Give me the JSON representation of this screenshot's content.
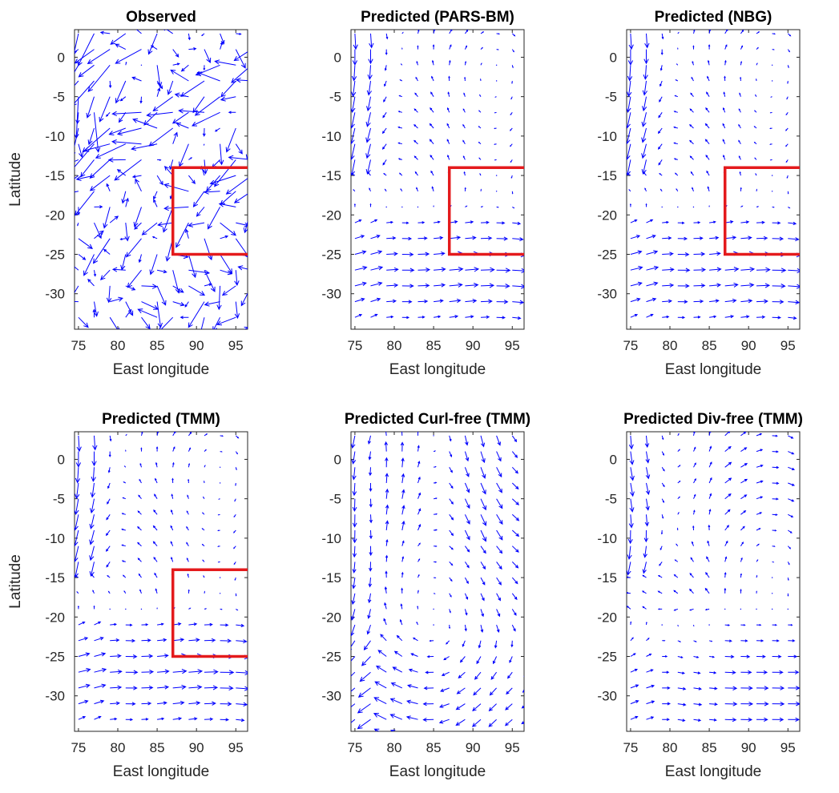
{
  "figure": {
    "arrow_color": "#0000ff",
    "box_color": "#e41a1c"
  },
  "chart_data": [
    {
      "type": "quiver",
      "title": "Observed",
      "xlabel": "East longitude",
      "ylabel": "Latitude",
      "xlim": [
        74.5,
        96.5
      ],
      "ylim": [
        -34.5,
        3.5
      ],
      "xticks": [
        "75",
        "80",
        "85",
        "90",
        "95"
      ],
      "yticks": [
        "0",
        "-5",
        "-10",
        "-15",
        "-20",
        "-25",
        "-30"
      ],
      "region_box": {
        "lon": [
          87,
          96.5
        ],
        "lat": [
          -25,
          -14
        ]
      },
      "field": "observed"
    },
    {
      "type": "quiver",
      "title": "Predicted (PARS-BM)",
      "xlabel": "East longitude",
      "ylabel": "",
      "xlim": [
        74.5,
        96.5
      ],
      "ylim": [
        -34.5,
        3.5
      ],
      "xticks": [
        "75",
        "80",
        "85",
        "90",
        "95"
      ],
      "yticks": [
        "0",
        "-5",
        "-10",
        "-15",
        "-20",
        "-25",
        "-30"
      ],
      "region_box": {
        "lon": [
          87,
          96.5
        ],
        "lat": [
          -25,
          -14
        ]
      },
      "field": "full"
    },
    {
      "type": "quiver",
      "title": "Predicted (NBG)",
      "xlabel": "East longitude",
      "ylabel": "",
      "xlim": [
        74.5,
        96.5
      ],
      "ylim": [
        -34.5,
        3.5
      ],
      "xticks": [
        "75",
        "80",
        "85",
        "90",
        "95"
      ],
      "yticks": [
        "0",
        "-5",
        "-10",
        "-15",
        "-20",
        "-25",
        "-30"
      ],
      "region_box": {
        "lon": [
          87,
          96.5
        ],
        "lat": [
          -25,
          -14
        ]
      },
      "field": "full"
    },
    {
      "type": "quiver",
      "title": "Predicted (TMM)",
      "xlabel": "East longitude",
      "ylabel": "Latitude",
      "xlim": [
        74.5,
        96.5
      ],
      "ylim": [
        -34.5,
        3.5
      ],
      "xticks": [
        "75",
        "80",
        "85",
        "90",
        "95"
      ],
      "yticks": [
        "0",
        "-5",
        "-10",
        "-15",
        "-20",
        "-25",
        "-30"
      ],
      "region_box": {
        "lon": [
          87,
          96.5
        ],
        "lat": [
          -25,
          -14
        ]
      },
      "field": "full"
    },
    {
      "type": "quiver",
      "title": "Predicted Curl-free (TMM)",
      "xlabel": "East longitude",
      "ylabel": "",
      "xlim": [
        74.5,
        96.5
      ],
      "ylim": [
        -34.5,
        3.5
      ],
      "xticks": [
        "75",
        "80",
        "85",
        "90",
        "95"
      ],
      "yticks": [
        "0",
        "-5",
        "-10",
        "-15",
        "-20",
        "-25",
        "-30"
      ],
      "region_box": null,
      "field": "curlfree"
    },
    {
      "type": "quiver",
      "title": "Predicted Div-free (TMM)",
      "xlabel": "East longitude",
      "ylabel": "",
      "xlim": [
        74.5,
        96.5
      ],
      "ylim": [
        -34.5,
        3.5
      ],
      "xticks": [
        "75",
        "80",
        "85",
        "90",
        "95"
      ],
      "yticks": [
        "0",
        "-5",
        "-10",
        "-15",
        "-20",
        "-25",
        "-30"
      ],
      "region_box": null,
      "field": "divfree"
    }
  ]
}
